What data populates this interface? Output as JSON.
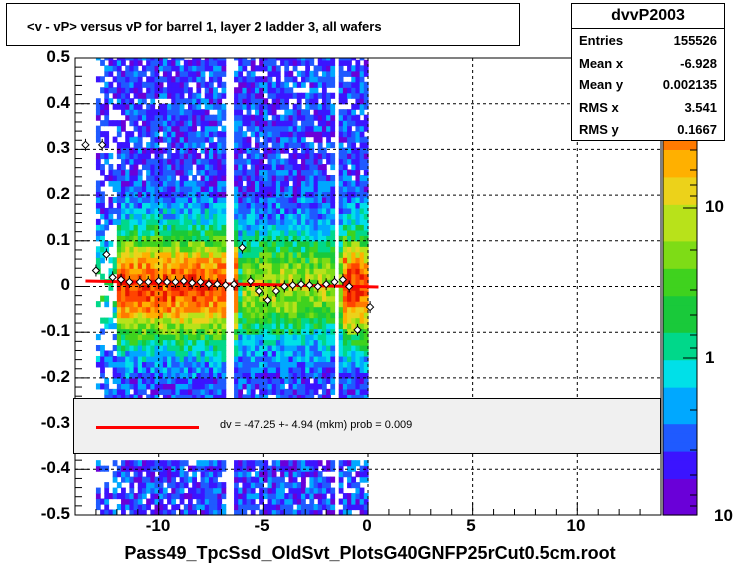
{
  "title": "<v - vP>       versus   vP for barrel 1, layer 2 ladder 3, all wafers",
  "stats": {
    "name": "dvvP2003",
    "rows": [
      {
        "label": "Entries",
        "value": "155526"
      },
      {
        "label": "Mean x",
        "value": "-6.928"
      },
      {
        "label": "Mean y",
        "value": "0.002135"
      },
      {
        "label": "RMS x",
        "value": "3.541"
      },
      {
        "label": "RMS y",
        "value": "0.1667"
      }
    ]
  },
  "fit_label": "dv =  -47.25 +-  4.94 (mkm) prob = 0.009",
  "x_axis_title": "Pass49_TpcSsd_OldSvt_PlotsG40GNFP25rCut0.5cm.root",
  "y_ticks": [
    "0.5",
    "0.4",
    "0.3",
    "0.2",
    "0.1",
    "0",
    "-0.1",
    "-0.2",
    "-0.3",
    "-0.4",
    "-0.5"
  ],
  "x_ticks": [
    "-10",
    "-5",
    "0",
    "5",
    "10"
  ],
  "z_ticks": [
    "10",
    "1",
    "10"
  ],
  "colors": {
    "fit": "#ff0000",
    "frame": "#000000",
    "fit_box_bg": "#f0f0f0"
  },
  "chart_data": {
    "type": "heatmap",
    "title": "<v - vP>       versus   vP for barrel 1, layer 2 ladder 3, all wafers",
    "xlabel": "Pass49_TpcSsd_OldSvt_PlotsG40GNFP25rCut0.5cm.root",
    "ylabel": "",
    "xlim": [
      -14,
      14
    ],
    "ylim": [
      -0.5,
      0.5
    ],
    "z_scale": "log",
    "zlim": [
      0.1,
      30
    ],
    "grid": true,
    "x_ticks": [
      -10,
      -5,
      0,
      5,
      10
    ],
    "y_ticks": [
      -0.5,
      -0.4,
      -0.3,
      -0.2,
      -0.1,
      0,
      0.1,
      0.2,
      0.3,
      0.4,
      0.5
    ],
    "populated_x_range": [
      -13.0,
      0.0
    ],
    "profile_points": {
      "x": [
        -13.5,
        -13.0,
        -12.7,
        -12.5,
        -12.2,
        -11.8,
        -11.4,
        -10.9,
        -10.5,
        -10.0,
        -9.6,
        -9.2,
        -8.8,
        -8.4,
        -8.0,
        -7.6,
        -7.2,
        -6.8,
        -6.4,
        -6.0,
        -5.6,
        -5.2,
        -4.8,
        -4.4,
        -4.0,
        -3.6,
        -3.2,
        -2.8,
        -2.4,
        -2.0,
        -1.6,
        -1.2,
        -0.9,
        -0.5,
        0.1
      ],
      "y": [
        0.31,
        0.035,
        0.31,
        0.07,
        0.02,
        0.015,
        0.01,
        0.01,
        0.01,
        0.012,
        0.01,
        0.01,
        0.012,
        0.008,
        0.01,
        0.005,
        0.005,
        0.003,
        0.005,
        0.085,
        0.012,
        -0.01,
        -0.03,
        -0.01,
        0.0,
        0.003,
        0.005,
        0.003,
        0.0,
        0.005,
        0.01,
        0.015,
        0.0,
        -0.095,
        -0.045
      ]
    },
    "fit_line": {
      "x": [
        -13.5,
        0.5
      ],
      "y": [
        0.012,
        -0.001
      ]
    },
    "legend": [
      {
        "label": "dv =  -47.25 +-  4.94 (mkm) prob = 0.009",
        "color": "#ff0000"
      }
    ]
  }
}
